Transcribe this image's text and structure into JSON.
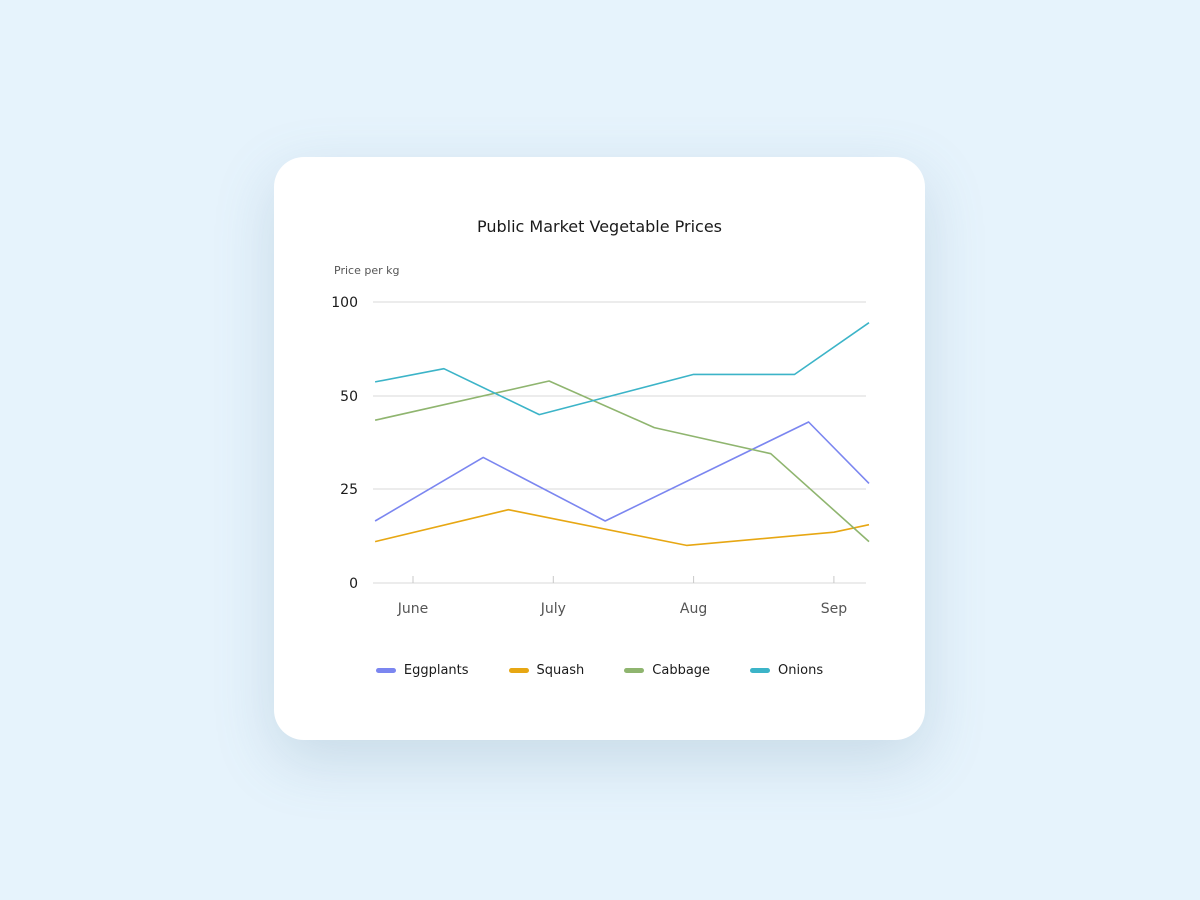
{
  "chart_data": {
    "type": "line",
    "title": "Public Market Vegetable Prices",
    "ylabel": "Price per kg",
    "xlabel": "",
    "x_ticks": [
      "June",
      "July",
      "Aug",
      "Sep"
    ],
    "y_ticks": [
      "0",
      "25",
      "50",
      "100"
    ],
    "grid": true,
    "legend_position": "bottom",
    "series": [
      {
        "name": "Eggplants",
        "color": "#7b86f0",
        "points": [
          [
            -0.27,
            16.5
          ],
          [
            0.5,
            33.5
          ],
          [
            1.37,
            16.5
          ],
          [
            2.82,
            43
          ],
          [
            3.25,
            26.5
          ]
        ]
      },
      {
        "name": "Squash",
        "color": "#e7a713",
        "points": [
          [
            -0.27,
            11
          ],
          [
            0.68,
            19.5
          ],
          [
            1.95,
            10
          ],
          [
            3.0,
            13.5
          ],
          [
            3.25,
            15.5
          ]
        ]
      },
      {
        "name": "Cabbage",
        "color": "#8fb56f",
        "points": [
          [
            -0.27,
            43.5
          ],
          [
            0.97,
            58
          ],
          [
            1.72,
            41.5
          ],
          [
            2.55,
            34.5
          ],
          [
            3.25,
            11
          ]
        ]
      },
      {
        "name": "Onions",
        "color": "#3cb4c8",
        "points": [
          [
            -0.27,
            57.5
          ],
          [
            0.22,
            64.5
          ],
          [
            0.9,
            45
          ],
          [
            2.0,
            61.5
          ],
          [
            2.72,
            61.5
          ],
          [
            3.25,
            89
          ]
        ]
      }
    ]
  }
}
